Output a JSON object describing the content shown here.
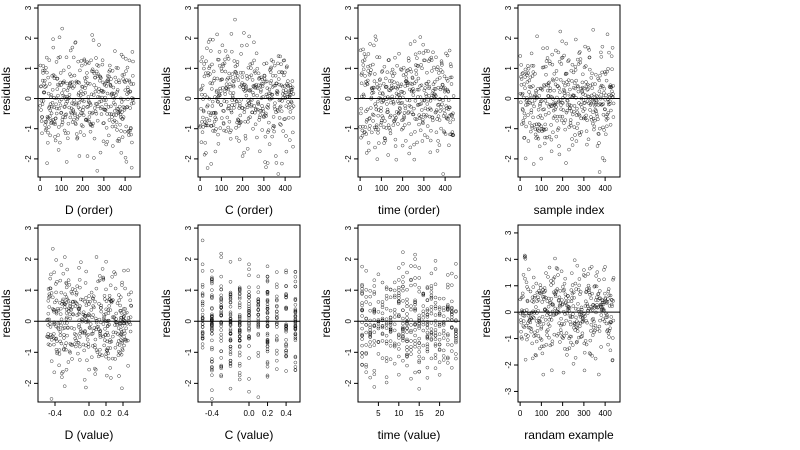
{
  "chart_data": [
    {
      "type": "scatter",
      "xlabel": "D (order)",
      "ylabel": "residuals",
      "xlim": [
        -10,
        470
      ],
      "ylim": [
        -2.6,
        3.1
      ],
      "xticks": [
        0,
        100,
        200,
        300,
        400
      ],
      "xtick_labels": [
        "0",
        "100",
        "200",
        "300",
        "400"
      ],
      "yticks": [
        -2,
        -1,
        0,
        1,
        2,
        3
      ],
      "ytick_labels": [
        "-2",
        "-1",
        "0",
        "1",
        "2",
        "3"
      ],
      "hline": 0,
      "pattern": "order",
      "seed": 11
    },
    {
      "type": "scatter",
      "xlabel": "C (order)",
      "ylabel": "residuals",
      "xlim": [
        -10,
        470
      ],
      "ylim": [
        -2.6,
        3.1
      ],
      "xticks": [
        0,
        100,
        200,
        300,
        400
      ],
      "xtick_labels": [
        "0",
        "100",
        "200",
        "300",
        "400"
      ],
      "yticks": [
        -2,
        -1,
        0,
        1,
        2,
        3
      ],
      "ytick_labels": [
        "-2",
        "-1",
        "0",
        "1",
        "2",
        "3"
      ],
      "hline": 0,
      "pattern": "order",
      "seed": 23
    },
    {
      "type": "scatter",
      "xlabel": "time (order)",
      "ylabel": "residuals",
      "xlim": [
        -10,
        470
      ],
      "ylim": [
        -2.6,
        3.1
      ],
      "xticks": [
        0,
        100,
        200,
        300,
        400
      ],
      "xtick_labels": [
        "0",
        "100",
        "200",
        "300",
        "400"
      ],
      "yticks": [
        -2,
        -1,
        0,
        1,
        2,
        3
      ],
      "ytick_labels": [
        "-2",
        "-1",
        "0",
        "1",
        "2",
        "3"
      ],
      "hline": 0,
      "pattern": "order",
      "seed": 37
    },
    {
      "type": "scatter",
      "xlabel": "sample index",
      "ylabel": "residuals",
      "xlim": [
        -10,
        470
      ],
      "ylim": [
        -2.6,
        3.1
      ],
      "xticks": [
        0,
        100,
        200,
        300,
        400
      ],
      "xtick_labels": [
        "0",
        "100",
        "200",
        "300",
        "400"
      ],
      "yticks": [
        -2,
        -1,
        0,
        1,
        2,
        3
      ],
      "ytick_labels": [
        "-2",
        "-1",
        "0",
        "1",
        "2",
        "3"
      ],
      "hline": 0,
      "pattern": "order",
      "seed": 41
    },
    {
      "type": "scatter",
      "xlabel": "D (value)",
      "ylabel": "residuals",
      "xlim": [
        -0.6,
        0.6
      ],
      "ylim": [
        -2.6,
        3.1
      ],
      "xticks": [
        -0.4,
        0.0,
        0.2,
        0.4
      ],
      "xtick_labels": [
        "-0.4",
        "0.0",
        "0.2",
        "0.4"
      ],
      "yticks": [
        -2,
        -1,
        0,
        1,
        2,
        3
      ],
      "ytick_labels": [
        "-2",
        "-1",
        "0",
        "1",
        "2",
        "3"
      ],
      "hline": 0,
      "pattern": "continuous",
      "seed": 53
    },
    {
      "type": "scatter",
      "xlabel": "C (value)",
      "ylabel": "residuals",
      "xlim": [
        -0.55,
        0.55
      ],
      "ylim": [
        -2.6,
        3.1
      ],
      "xticks": [
        -0.4,
        0.0,
        0.2,
        0.4
      ],
      "xtick_labels": [
        "-0.4",
        "0.0",
        "0.2",
        "0.4"
      ],
      "yticks": [
        -2,
        -1,
        0,
        1,
        2,
        3
      ],
      "ytick_labels": [
        "-2",
        "-1",
        "0",
        "1",
        "2",
        "3"
      ],
      "hline": 0,
      "pattern": "discrete",
      "levels": [
        -0.5,
        -0.4,
        -0.3,
        -0.2,
        -0.1,
        0.0,
        0.1,
        0.2,
        0.3,
        0.4,
        0.5
      ],
      "seed": 61
    },
    {
      "type": "scatter",
      "xlabel": "time (value)",
      "ylabel": "residuals",
      "xlim": [
        0,
        25
      ],
      "ylim": [
        -2.6,
        3.1
      ],
      "xticks": [
        5,
        10,
        15,
        20
      ],
      "xtick_labels": [
        "5",
        "10",
        "15",
        "20"
      ],
      "yticks": [
        -2,
        -1,
        0,
        1,
        2,
        3
      ],
      "ytick_labels": [
        "-2",
        "-1",
        "0",
        "1",
        "2",
        "3"
      ],
      "hline": 0,
      "pattern": "discrete",
      "levels": [
        1,
        2,
        3,
        4,
        5,
        6,
        7,
        8,
        9,
        10,
        11,
        12,
        13,
        14,
        15,
        16,
        17,
        18,
        19,
        20,
        21,
        22,
        23,
        24
      ],
      "seed": 71
    },
    {
      "type": "scatter",
      "xlabel": "randam example",
      "ylabel": "residuals",
      "xlim": [
        -10,
        470
      ],
      "ylim": [
        -3.4,
        3.3
      ],
      "xticks": [
        0,
        100,
        200,
        300,
        400
      ],
      "xtick_labels": [
        "0",
        "100",
        "200",
        "300",
        "400"
      ],
      "yticks": [
        -3,
        -2,
        -1,
        0,
        1,
        2,
        3
      ],
      "ytick_labels": [
        "-3",
        "-2",
        "-1",
        "0",
        "1",
        "2",
        "3"
      ],
      "hline": 0,
      "pattern": "random",
      "seed": 83
    }
  ],
  "style": {
    "point_color": "#000000",
    "line_color": "#000000"
  }
}
